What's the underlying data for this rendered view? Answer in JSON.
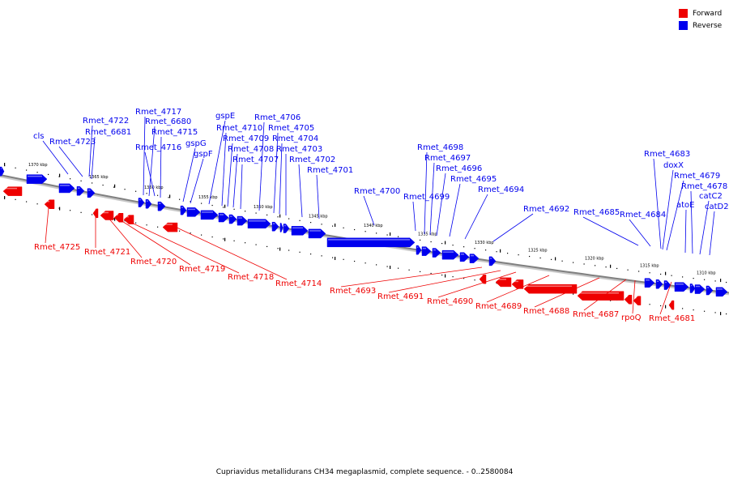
{
  "legend": [
    {
      "label": "Forward",
      "color": "#ee0000"
    },
    {
      "label": "Reverse",
      "color": "#0000ee"
    }
  ],
  "caption": "Cupriavidus metallidurans CH34 megaplasmid, complete sequence. - 0..2580084",
  "colors": {
    "forward": "#ee0000",
    "reverse": "#0000ee",
    "backbone": "#808080"
  },
  "ticks": [
    "1370 kbp",
    "1365 kbp",
    "1360 kbp",
    "1355 kbp",
    "1350 kbp",
    "1345 kbp",
    "1340 kbp",
    "1335 kbp",
    "1330 kbp",
    "1325 kbp",
    "1320 kbp",
    "1315 kbp",
    "1310 kbp"
  ],
  "reverse_genes": [
    "cls",
    "Rmet_4723",
    "Rmet_4722",
    "Rmet_6681",
    "Rmet_4717",
    "Rmet_6680",
    "Rmet_4716",
    "Rmet_4715",
    "gspG",
    "gspF",
    "gspE",
    "Rmet_4710",
    "Rmet_4709",
    "Rmet_4708",
    "Rmet_4707",
    "Rmet_4706",
    "Rmet_4705",
    "Rmet_4704",
    "Rmet_4703",
    "Rmet_4702",
    "Rmet_4701",
    "Rmet_4700",
    "Rmet_4699",
    "Rmet_4698",
    "Rmet_4697",
    "Rmet_4696",
    "Rmet_4695",
    "Rmet_4694",
    "Rmet_4692",
    "Rmet_4685",
    "Rmet_4684",
    "Rmet_4683",
    "doxX",
    "Rmet_4679",
    "atoE",
    "Rmet_4678",
    "catC2",
    "catD2"
  ],
  "forward_genes": [
    "Rmet_4725",
    "Rmet_4721",
    "Rmet_4720",
    "Rmet_4719",
    "Rmet_4718",
    "Rmet_4714",
    "Rmet_4693",
    "Rmet_4691",
    "Rmet_4690",
    "Rmet_4689",
    "Rmet_4688",
    "Rmet_4687",
    "rpoQ",
    "Rmet_4681"
  ]
}
